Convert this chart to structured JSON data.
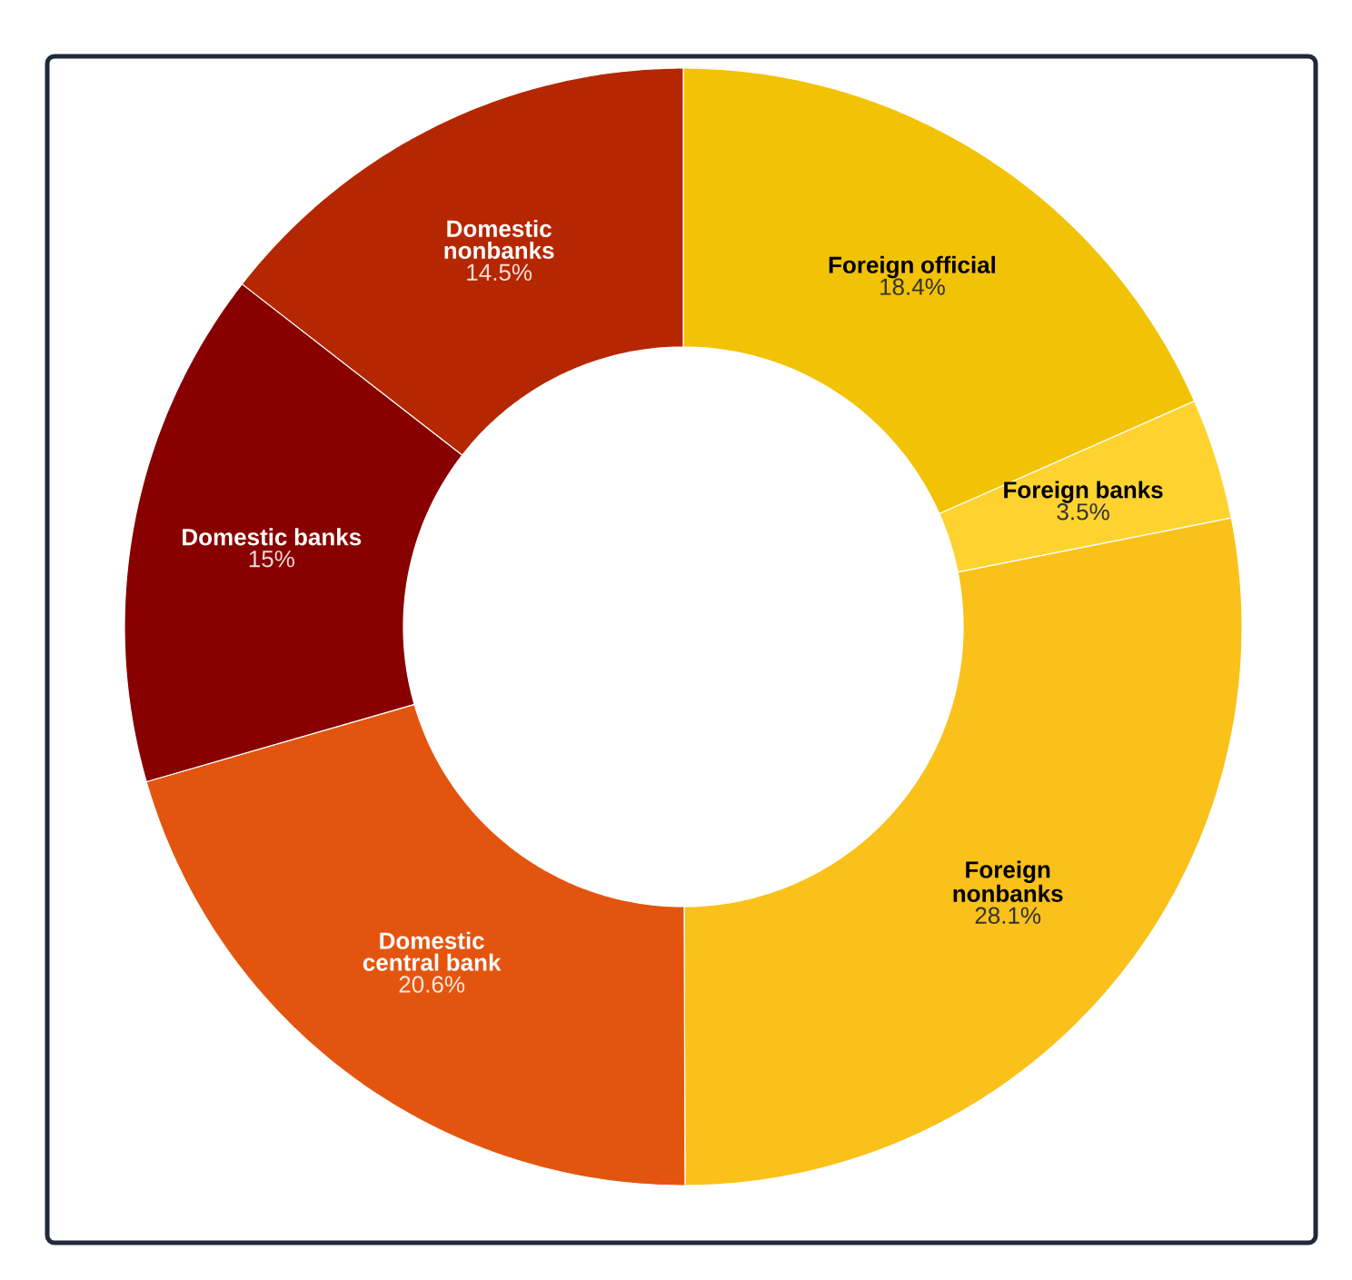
{
  "chart_data": {
    "type": "donut",
    "categories": [
      "Foreign official",
      "Foreign banks",
      "Foreign nonbanks",
      "Domestic central bank",
      "Domestic banks",
      "Domestic nonbanks"
    ],
    "values": [
      18.4,
      3.5,
      28.1,
      20.6,
      15,
      14.5
    ],
    "value_labels": [
      "18.4%",
      "3.5%",
      "28.1%",
      "20.6%",
      "15%",
      "14.5%"
    ],
    "colors": [
      "#f2c204",
      "#fed330",
      "#f9c11a",
      "#e3550f",
      "#880000",
      "#b52700"
    ]
  }
}
